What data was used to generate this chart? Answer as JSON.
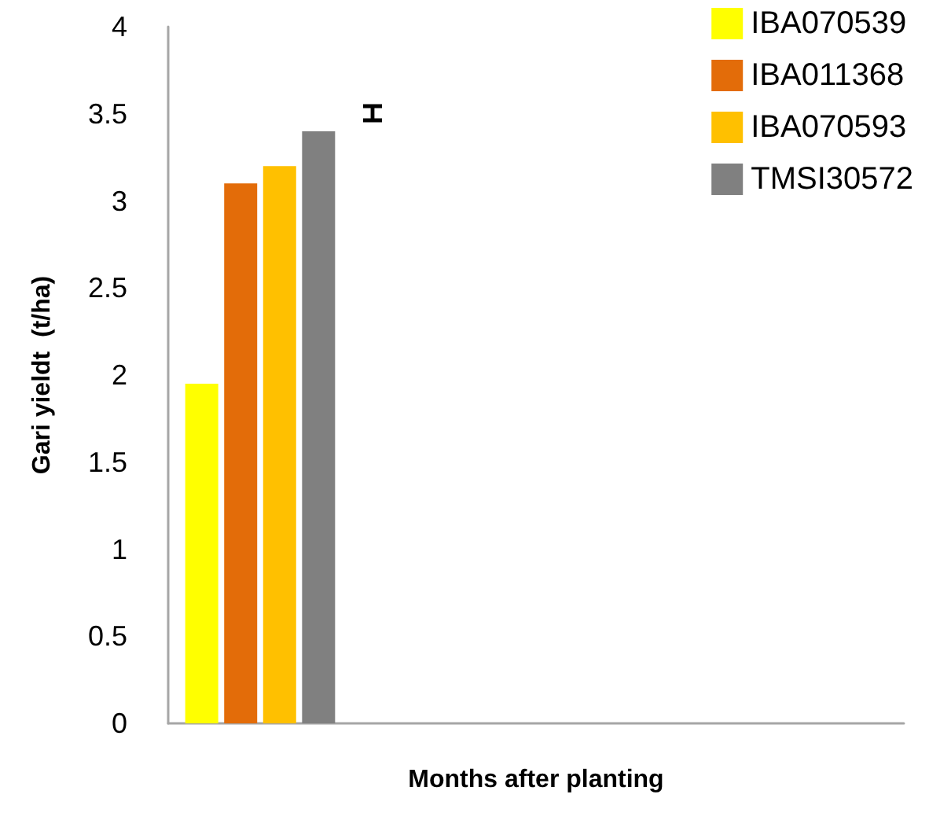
{
  "chart_data": {
    "type": "bar",
    "xlabel": "Months after planting",
    "ylabel": "Gari yieldt  (t/ha)",
    "categories": [
      null,
      null,
      null,
      null
    ],
    "series": [
      {
        "name": "IBA070539",
        "color": "#ffff00",
        "values": [
          1.95,
          null,
          null,
          null
        ]
      },
      {
        "name": "IBA011368",
        "color": "#e36c09",
        "values": [
          3.1,
          null,
          null,
          null
        ]
      },
      {
        "name": "IBA070593",
        "color": "#ffc000",
        "values": [
          3.2,
          null,
          null,
          null
        ]
      },
      {
        "name": "TMSI30572",
        "color": "#808080",
        "values": [
          3.4,
          null,
          null,
          null
        ]
      }
    ],
    "ylim": [
      0,
      4
    ],
    "yticks": [
      0,
      0.5,
      1,
      1.5,
      2,
      2.5,
      3,
      3.5,
      4
    ],
    "grid": false,
    "legend": "top right"
  }
}
